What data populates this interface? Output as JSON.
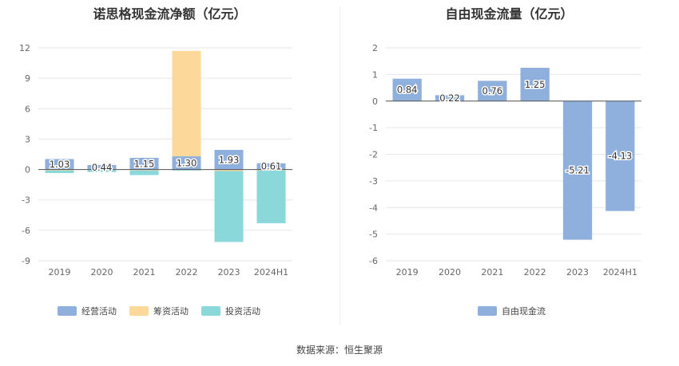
{
  "source_text": "数据来源：恒生聚源",
  "chart_data": [
    {
      "type": "bar",
      "stacked": true,
      "title": "诺思格现金流净额（亿元）",
      "categories": [
        "2019",
        "2020",
        "2021",
        "2022",
        "2023",
        "2024H1"
      ],
      "ylim": [
        -9,
        12
      ],
      "yticks": [
        12,
        9,
        6,
        3,
        0,
        -3,
        -6,
        -9
      ],
      "grid": true,
      "legend_position": "bottom",
      "series": [
        {
          "name": "经营活动",
          "color": "#8fafdc",
          "values": [
            1.03,
            0.44,
            1.15,
            1.3,
            1.93,
            0.61
          ]
        },
        {
          "name": "筹资活动",
          "color": "#fdd89b",
          "values": [
            -0.1,
            -0.05,
            -0.1,
            10.4,
            -0.15,
            -0.1
          ]
        },
        {
          "name": "投资活动",
          "color": "#8ad8da",
          "values": [
            -0.25,
            -0.2,
            -0.45,
            -0.1,
            -7.0,
            -5.2
          ]
        }
      ],
      "data_labels": [
        "1.03",
        "0.44",
        "1.15",
        "1.30",
        "1.93",
        "0.61"
      ]
    },
    {
      "type": "bar",
      "title": "自由现金流量（亿元）",
      "categories": [
        "2019",
        "2020",
        "2021",
        "2022",
        "2023",
        "2024H1"
      ],
      "ylim": [
        -6,
        2
      ],
      "yticks": [
        2,
        1,
        0,
        -1,
        -2,
        -3,
        -4,
        -5,
        -6
      ],
      "grid": true,
      "legend_position": "bottom",
      "series": [
        {
          "name": "自由现金流",
          "color": "#8fafdc",
          "values": [
            0.84,
            0.22,
            0.76,
            1.25,
            -5.21,
            -4.13
          ]
        }
      ],
      "data_labels": [
        "0.84",
        "0.22",
        "0.76",
        "1.25",
        "-5.21",
        "-4.13"
      ]
    }
  ]
}
